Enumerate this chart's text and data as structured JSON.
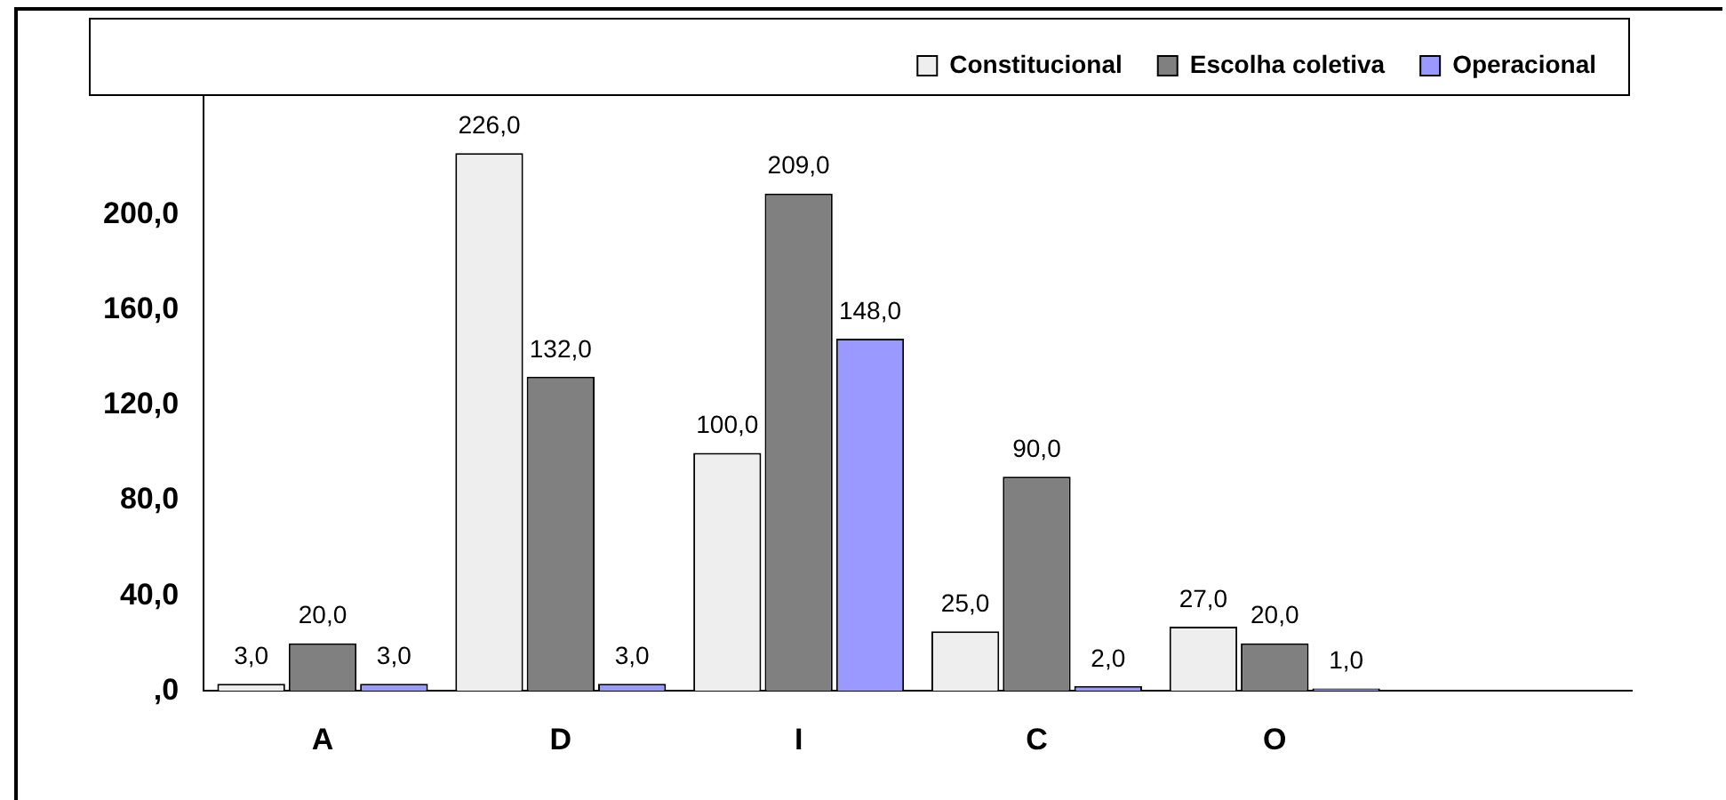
{
  "chart_data": {
    "type": "bar",
    "categories": [
      "A",
      "D",
      "I",
      "C",
      "O",
      null
    ],
    "series": [
      {
        "name": "Constitucional",
        "color": "#eeeeee",
        "values": [
          3,
          226,
          100,
          25,
          27,
          null
        ],
        "value_labels": [
          "3,0",
          "226,0",
          "100,0",
          "25,0",
          "27,0",
          null
        ]
      },
      {
        "name": "Escolha coletiva",
        "color": "#808080",
        "values": [
          20,
          132,
          209,
          90,
          20,
          null
        ],
        "value_labels": [
          "20,0",
          "132,0",
          "209,0",
          "90,0",
          "20,0",
          null
        ]
      },
      {
        "name": "Operacional",
        "color": "#9999ff",
        "values": [
          3,
          3,
          148,
          2,
          1,
          null
        ],
        "value_labels": [
          "3,0",
          "3,0",
          "148,0",
          "2,0",
          "1,0",
          null
        ]
      }
    ],
    "ylim": [
      0,
      250
    ],
    "yticks": [
      {
        "value": 0,
        "label": ",0"
      },
      {
        "value": 40,
        "label": "40,0"
      },
      {
        "value": 80,
        "label": "80,0"
      },
      {
        "value": 120,
        "label": "120,0"
      },
      {
        "value": 160,
        "label": "160,0"
      },
      {
        "value": 200,
        "label": "200,0"
      }
    ],
    "grid": false,
    "legend": "top right"
  }
}
